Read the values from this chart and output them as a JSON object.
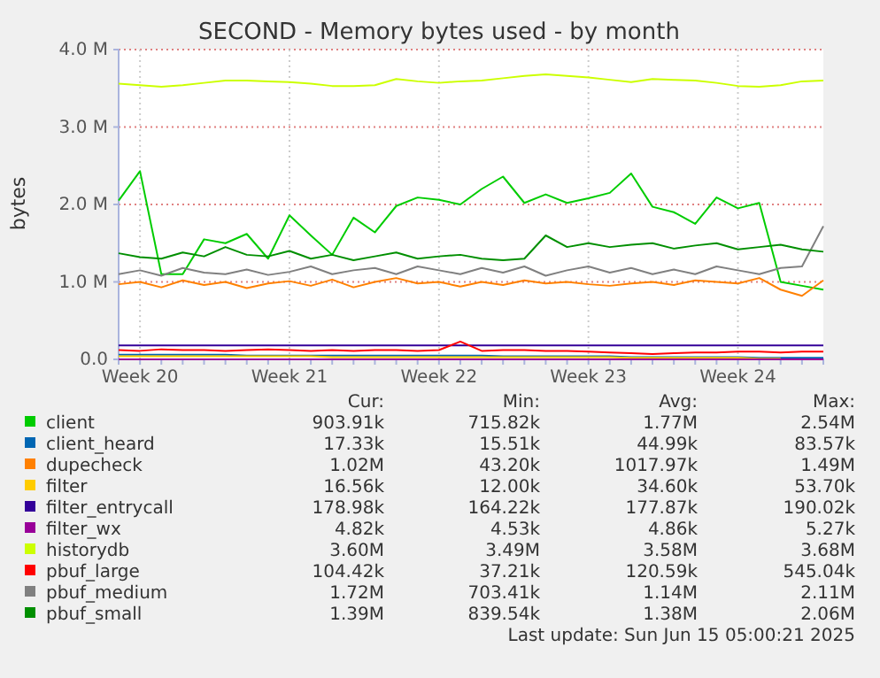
{
  "chart_data": {
    "type": "line",
    "title": "SECOND - Memory bytes used - by month",
    "ylabel": "bytes",
    "categories": [
      null,
      "Week 20",
      null,
      null,
      null,
      null,
      null,
      null,
      "Week 21",
      null,
      null,
      null,
      null,
      null,
      null,
      "Week 22",
      null,
      null,
      null,
      null,
      null,
      null,
      "Week 23",
      null,
      null,
      null,
      null,
      null,
      null,
      "Week 24",
      null,
      null,
      null,
      null
    ],
    "ylim": [
      0,
      4000000
    ],
    "yticks": [
      {
        "value": 0,
        "label": "0.0"
      },
      {
        "value": 1000000,
        "label": "1.0 M"
      },
      {
        "value": 2000000,
        "label": "2.0 M"
      },
      {
        "value": 3000000,
        "label": "3.0 M"
      },
      {
        "value": 4000000,
        "label": "4.0 M"
      }
    ],
    "grid": true,
    "legend": "bottom",
    "line_style": "solid",
    "marker": "none",
    "series": [
      {
        "name": "client",
        "color": "#00cc00",
        "values": [
          2050000,
          2430000,
          1100000,
          1100000,
          1550000,
          1500000,
          1620000,
          1300000,
          1860000,
          1600000,
          1350000,
          1830000,
          1640000,
          1980000,
          2090000,
          2060000,
          2000000,
          2200000,
          2360000,
          2020000,
          2130000,
          2020000,
          2080000,
          2150000,
          2400000,
          1970000,
          1900000,
          1750000,
          2090000,
          1950000,
          2020000,
          1000000,
          950000,
          900000
        ]
      },
      {
        "name": "client_heard",
        "color": "#0066b3",
        "values": [
          60000,
          60000,
          60000,
          60000,
          60000,
          60000,
          50000,
          50000,
          50000,
          50000,
          50000,
          50000,
          50000,
          50000,
          50000,
          50000,
          50000,
          50000,
          40000,
          40000,
          40000,
          40000,
          40000,
          40000,
          30000,
          30000,
          30000,
          30000,
          30000,
          30000,
          20000,
          20000,
          20000,
          20000
        ]
      },
      {
        "name": "dupecheck",
        "color": "#ff8000",
        "values": [
          970000,
          1000000,
          930000,
          1020000,
          960000,
          1000000,
          920000,
          980000,
          1010000,
          950000,
          1030000,
          930000,
          1000000,
          1050000,
          980000,
          1000000,
          940000,
          1000000,
          960000,
          1020000,
          980000,
          1000000,
          970000,
          950000,
          980000,
          1000000,
          960000,
          1020000,
          1000000,
          980000,
          1050000,
          900000,
          820000,
          1020000
        ]
      },
      {
        "name": "filter",
        "color": "#ffcc00",
        "values": [
          40000,
          40000,
          40000,
          40000,
          40000,
          40000,
          40000,
          40000,
          40000,
          40000,
          30000,
          30000,
          30000,
          30000,
          30000,
          30000,
          30000,
          30000,
          30000,
          30000,
          30000,
          30000,
          30000,
          30000,
          20000,
          20000,
          20000,
          20000,
          20000,
          20000,
          10000,
          10000,
          null,
          null
        ]
      },
      {
        "name": "filter_entrycall",
        "color": "#330099",
        "values": [
          180000,
          180000,
          180000,
          180000,
          180000,
          180000,
          180000,
          180000,
          180000,
          180000,
          180000,
          180000,
          180000,
          180000,
          180000,
          180000,
          180000,
          180000,
          180000,
          180000,
          180000,
          180000,
          180000,
          180000,
          180000,
          180000,
          180000,
          180000,
          180000,
          180000,
          180000,
          180000,
          180000,
          180000
        ]
      },
      {
        "name": "filter_wx",
        "color": "#990099",
        "values": [
          0,
          0,
          0,
          0,
          0,
          0,
          0,
          0,
          0,
          0,
          0,
          0,
          0,
          0,
          0,
          0,
          0,
          0,
          0,
          0,
          0,
          0,
          0,
          0,
          0,
          0,
          0,
          0,
          0,
          0,
          0,
          0,
          0,
          0
        ]
      },
      {
        "name": "historydb",
        "color": "#ccff00",
        "values": [
          3560000,
          3540000,
          3520000,
          3540000,
          3570000,
          3600000,
          3600000,
          3590000,
          3580000,
          3560000,
          3530000,
          3530000,
          3540000,
          3620000,
          3590000,
          3570000,
          3590000,
          3600000,
          3630000,
          3660000,
          3680000,
          3660000,
          3640000,
          3610000,
          3580000,
          3620000,
          3610000,
          3600000,
          3570000,
          3530000,
          3520000,
          3540000,
          3590000,
          3600000
        ]
      },
      {
        "name": "pbuf_large",
        "color": "#ff0000",
        "values": [
          120000,
          110000,
          130000,
          120000,
          120000,
          110000,
          120000,
          130000,
          120000,
          110000,
          120000,
          110000,
          120000,
          120000,
          110000,
          120000,
          230000,
          110000,
          120000,
          120000,
          110000,
          110000,
          100000,
          90000,
          80000,
          70000,
          80000,
          90000,
          90000,
          100000,
          100000,
          90000,
          100000,
          100000
        ]
      },
      {
        "name": "pbuf_medium",
        "color": "#808080",
        "values": [
          1100000,
          1150000,
          1080000,
          1180000,
          1120000,
          1100000,
          1160000,
          1090000,
          1130000,
          1200000,
          1100000,
          1150000,
          1180000,
          1100000,
          1200000,
          1150000,
          1100000,
          1180000,
          1120000,
          1200000,
          1080000,
          1150000,
          1200000,
          1120000,
          1180000,
          1100000,
          1160000,
          1100000,
          1200000,
          1150000,
          1100000,
          1180000,
          1200000,
          1720000
        ]
      },
      {
        "name": "pbuf_small",
        "color": "#008f00",
        "values": [
          1370000,
          1320000,
          1300000,
          1380000,
          1330000,
          1450000,
          1350000,
          1330000,
          1400000,
          1300000,
          1350000,
          1280000,
          1330000,
          1380000,
          1300000,
          1330000,
          1350000,
          1300000,
          1280000,
          1300000,
          1600000,
          1450000,
          1500000,
          1450000,
          1480000,
          1500000,
          1430000,
          1470000,
          1500000,
          1420000,
          1450000,
          1480000,
          1420000,
          1390000
        ]
      }
    ],
    "annotations": [
      "Cur:",
      "Min:",
      "Avg:",
      "Max:",
      "903.91k",
      "715.82k",
      "1.77M",
      "2.54M",
      "17.33k",
      "15.51k",
      "44.99k",
      "83.57k",
      "1.02M",
      "43.20k",
      "1017.97k",
      "1.49M",
      "16.56k",
      "12.00k",
      "34.60k",
      "53.70k",
      "178.98k",
      "164.22k",
      "177.87k",
      "190.02k",
      "4.82k",
      "4.53k",
      "4.86k",
      "5.27k",
      "3.60M",
      "3.49M",
      "3.58M",
      "3.68M",
      "104.42k",
      "37.21k",
      "120.59k",
      "545.04k",
      "1.72M",
      "703.41k",
      "1.14M",
      "2.11M",
      "1.39M",
      "839.54k",
      "1.38M",
      "2.06M",
      "Last update: Sun Jun 15 05:00:21 2025"
    ]
  }
}
